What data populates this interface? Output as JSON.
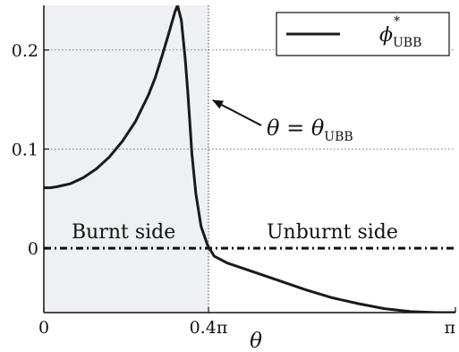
{
  "chart_data": {
    "type": "line",
    "xlabel": "θ",
    "xlim": [
      0,
      3.14159
    ],
    "ylim": [
      -0.065,
      0.245
    ],
    "x_ticks": [
      {
        "value": 0,
        "label": "0"
      },
      {
        "value": 1.25664,
        "label": "0.4π"
      },
      {
        "value": 3.14159,
        "label": "π"
      }
    ],
    "y_ticks": [
      {
        "value": 0,
        "label": "0"
      },
      {
        "value": 0.1,
        "label": "0.1"
      },
      {
        "value": 0.2,
        "label": "0.2"
      }
    ],
    "shaded_region": {
      "x_from": 0,
      "x_to": 1.25664,
      "color": "#eef0f4"
    },
    "vline": {
      "x": 1.25664
    },
    "hline": {
      "y": 0,
      "style": "dash-dot"
    },
    "grid": "horizontal-dotted",
    "legend": {
      "position": "top-right",
      "entries": [
        {
          "symbol": "ϕ",
          "superscript": "*",
          "subscript": "UBB"
        }
      ]
    },
    "annotation": {
      "lhs": "θ = θ",
      "subscript": "UBB",
      "arrow_to_x": 1.25664,
      "arrow_to_y": 0.148
    },
    "region_labels": {
      "left": "Burnt side",
      "right": "Unburnt side"
    },
    "series": [
      {
        "color": "#1a1a1a",
        "x": [
          0,
          0.05,
          0.1,
          0.2,
          0.3,
          0.4,
          0.5,
          0.6,
          0.7,
          0.8,
          0.85,
          0.9,
          0.95,
          1.0,
          1.02,
          1.05,
          1.08,
          1.1,
          1.13,
          1.16,
          1.2,
          1.25,
          1.3,
          1.4,
          1.6,
          1.8,
          2.0,
          2.2,
          2.4,
          2.6,
          2.8,
          3.0,
          3.14159
        ],
        "y": [
          0.061,
          0.061,
          0.062,
          0.065,
          0.071,
          0.08,
          0.092,
          0.108,
          0.128,
          0.155,
          0.172,
          0.193,
          0.215,
          0.238,
          0.245,
          0.23,
          0.19,
          0.155,
          0.095,
          0.055,
          0.022,
          0.003,
          -0.008,
          -0.015,
          -0.024,
          -0.033,
          -0.042,
          -0.05,
          -0.056,
          -0.061,
          -0.064,
          -0.065,
          -0.065
        ]
      }
    ]
  }
}
